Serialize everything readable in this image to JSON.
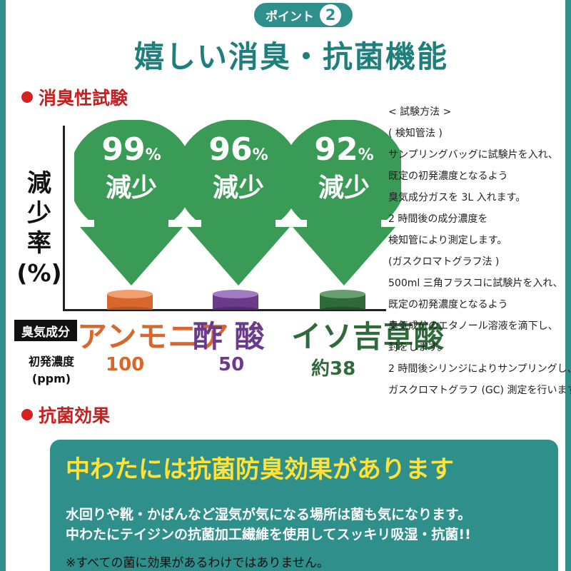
{
  "header": {
    "badge_label": "ポイント",
    "badge_number": "2",
    "title": "嬉しい消臭・抗菌機能"
  },
  "deodor": {
    "heading": "消臭性試験",
    "y_label_lines": [
      "減",
      "少",
      "率",
      "(%)"
    ],
    "odor_label": "臭気成分",
    "conc_label_line1": "初発濃度",
    "conc_label_line2": "(ppm)",
    "items": [
      {
        "pct": "99",
        "pct_unit": "%",
        "decrease": "減少",
        "compound": "アンモニア",
        "conc": "100",
        "color": "#d9672c"
      },
      {
        "pct": "96",
        "pct_unit": "%",
        "decrease": "減少",
        "compound": "酢 酸",
        "conc": "50",
        "color": "#6b3a8a"
      },
      {
        "pct": "92",
        "pct_unit": "%",
        "decrease": "減少",
        "compound": "イソ吉草酸",
        "conc": "約38",
        "color": "#2f6a3a"
      }
    ],
    "arrow_color": "#3a9b57"
  },
  "method": {
    "lines": [
      "< 試験方法 >",
      "( 検知管法 )",
      "サンプリングバッグに試験片を入れ、",
      "既定の初発濃度となるよう",
      "臭気成分ガスを 3L 入れます。",
      "2 時間後の成分濃度を",
      "検知管により測定します。",
      "(ガスクロマトグラフ法 )",
      "500ml 三角フラスコに試験片を入れ、",
      "既定の初発濃度となるよう",
      "臭気成分のエタノール溶液を滴下し、",
      "封をします。",
      "2 時間後シリンジによりサンプリングし、",
      "ガスクロマトグラフ (GC) 測定を行います。"
    ]
  },
  "antibac": {
    "heading": "抗菌効果",
    "box_heading": "中わたには抗菌防臭効果があります",
    "body_line1": "水回りや靴・かばんなど湿気が気になる場所は菌も気になります。",
    "body_line2": "中わたにテイジンの抗菌加工繊維を使用してスッキリ吸湿・抗菌!!",
    "note": "※すべての菌に効果があるわけではありません。"
  }
}
